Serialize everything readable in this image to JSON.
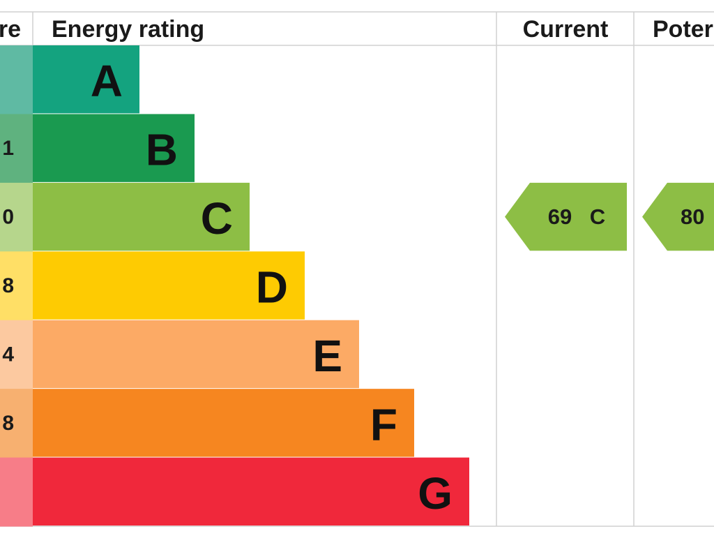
{
  "header": {
    "score": "re",
    "rating": "Energy rating",
    "current": "Current",
    "potential": "Poter"
  },
  "rows": [
    {
      "letter": "A",
      "color": "#14a37f",
      "tint": "#5fbaa3"
    },
    {
      "letter": "B",
      "score": "1",
      "color": "#1a9a50",
      "tint": "#5fb27f"
    },
    {
      "letter": "C",
      "score": "0",
      "color": "#8dbe45",
      "tint": "#b6d68c"
    },
    {
      "letter": "D",
      "score": "8",
      "color": "#fecb02",
      "tint": "#ffdf66"
    },
    {
      "letter": "E",
      "score": "4",
      "color": "#fcaa65",
      "tint": "#fcc9a0"
    },
    {
      "letter": "F",
      "score": "8",
      "color": "#f68620",
      "tint": "#f7b070"
    },
    {
      "letter": "G",
      "color": "#f0283b",
      "tint": "#f77d88"
    }
  ],
  "current": {
    "value": 69,
    "band": "C",
    "color": "#8dbe45"
  },
  "potential": {
    "value": 80,
    "color": "#8dbe45"
  }
}
